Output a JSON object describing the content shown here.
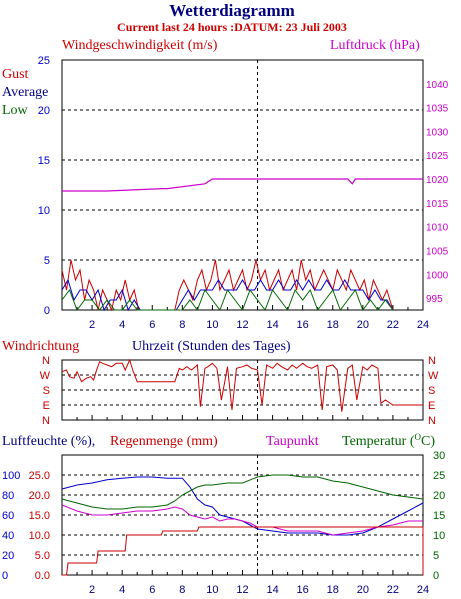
{
  "colors": {
    "title": "#000080",
    "red": "#cc0000",
    "magenta": "#cc00cc",
    "blue": "#0000cc",
    "green": "#006600",
    "cyan": "#008888",
    "grid": "#000000"
  },
  "header": {
    "title": "Wetterdiagramm",
    "subtitle": "Current last 24 hours :DATUM: 23 Juli 2003"
  },
  "chart_data": [
    {
      "type": "line",
      "id": "wind",
      "y_left_label": "Windgeschwindigkeit (m/s)",
      "y_right_label": "Luftdruck (hPa)",
      "legend": [
        "Gust",
        "Average",
        "Low"
      ],
      "x_ticks": [
        "2",
        "4",
        "6",
        "8",
        "10",
        "12",
        "14",
        "16",
        "18",
        "20",
        "22",
        "24"
      ],
      "xlim": [
        0,
        24
      ],
      "ylim_left": [
        0,
        25
      ],
      "y_left_ticks": [
        "0",
        "5",
        "10",
        "15",
        "20",
        "25"
      ],
      "ylim_right": [
        992.5,
        1045
      ],
      "y_right_ticks": [
        "995",
        "1000",
        "1005",
        "1010",
        "1015",
        "1020",
        "1025",
        "1030",
        "1035",
        "1040"
      ],
      "grid": true,
      "series": [
        {
          "name": "Luftdruck",
          "axis": "right",
          "x": [
            0,
            3,
            6.7,
            7,
            9.5,
            10,
            12.5,
            13,
            16,
            19,
            19.3,
            19.5,
            24
          ],
          "y": [
            1017.5,
            1017.5,
            1018,
            1018,
            1019,
            1020,
            1020,
            1020,
            1020,
            1020,
            1019,
            1020,
            1020
          ]
        },
        {
          "name": "Gust",
          "axis": "left",
          "x": [
            0,
            0.3,
            0.6,
            0.9,
            1.2,
            1.5,
            1.8,
            2.1,
            2.4,
            2.7,
            3,
            3.3,
            3.6,
            3.9,
            4.2,
            4.5,
            4.8,
            5.1,
            7.5,
            7.8,
            8.1,
            8.4,
            8.7,
            9,
            9.3,
            9.6,
            9.9,
            10.2,
            10.5,
            10.8,
            11.1,
            11.4,
            11.7,
            12,
            12.3,
            12.6,
            12.9,
            13.2,
            13.5,
            13.8,
            14.1,
            14.4,
            14.7,
            15,
            15.3,
            15.6,
            15.9,
            16.2,
            16.5,
            16.8,
            17.1,
            17.4,
            17.7,
            18,
            18.3,
            18.6,
            18.9,
            19.2,
            19.5,
            19.8,
            20.1,
            20.4,
            20.7,
            21,
            21.3,
            21.6,
            22
          ],
          "y": [
            4,
            2,
            5,
            3,
            4,
            1,
            3,
            2,
            0,
            2,
            1,
            0,
            2,
            1,
            3,
            1,
            2,
            0,
            0,
            2,
            3,
            2,
            1,
            3,
            4,
            2,
            3,
            5,
            2,
            3,
            4,
            2,
            3,
            4,
            2,
            3,
            5,
            3,
            4,
            2,
            3,
            4,
            2,
            3,
            4,
            2,
            5,
            3,
            4,
            2,
            3,
            4,
            3,
            2,
            4,
            3,
            2,
            4,
            3,
            2,
            3,
            1,
            3,
            2,
            1,
            2,
            0
          ]
        },
        {
          "name": "Average",
          "axis": "left",
          "x": [
            0,
            0.4,
            0.8,
            1.2,
            1.6,
            2,
            2.4,
            2.8,
            3.2,
            3.6,
            4,
            4.4,
            4.8,
            5.2,
            7.6,
            8,
            8.4,
            8.8,
            9.2,
            9.6,
            10,
            10.4,
            10.8,
            11.2,
            11.6,
            12,
            12.4,
            12.8,
            13.2,
            13.6,
            14,
            14.4,
            14.8,
            15.2,
            15.6,
            16,
            16.4,
            16.8,
            17.2,
            17.6,
            18,
            18.4,
            18.8,
            19.2,
            19.6,
            20,
            20.4,
            20.8,
            21.2,
            21.6,
            22
          ],
          "y": [
            2,
            3,
            1,
            2,
            2,
            1,
            2,
            0,
            1,
            1,
            2,
            0,
            1,
            0,
            0,
            1,
            2,
            1,
            2,
            2,
            2,
            3,
            2,
            2,
            2,
            3,
            2,
            2,
            3,
            2,
            2,
            3,
            2,
            2,
            3,
            2,
            3,
            2,
            2,
            3,
            2,
            2,
            3,
            2,
            2,
            2,
            1,
            2,
            1,
            1,
            0
          ]
        },
        {
          "name": "Low",
          "axis": "left",
          "x": [
            0,
            0.5,
            1,
            1.5,
            2,
            2.5,
            3,
            3.5,
            4,
            4.5,
            5,
            8,
            8.5,
            9,
            9.5,
            10,
            10.5,
            11,
            11.5,
            12,
            12.5,
            13,
            13.5,
            14,
            14.5,
            15,
            15.5,
            16,
            16.5,
            17,
            17.5,
            18,
            18.5,
            19,
            19.5,
            20,
            20.5,
            21,
            21.5,
            22
          ],
          "y": [
            1,
            2,
            0,
            1,
            1,
            0,
            1,
            0,
            0,
            1,
            0,
            0,
            1,
            0,
            2,
            1,
            0,
            2,
            1,
            0,
            2,
            1,
            0,
            2,
            1,
            0,
            2,
            1,
            2,
            0,
            1,
            2,
            0,
            1,
            2,
            0,
            1,
            0,
            1,
            0
          ]
        }
      ]
    },
    {
      "type": "line",
      "id": "direction",
      "y_left_label": "Windrichtung",
      "xlabel": "Uhrzeit (Stunden des Tages)",
      "y_ticks": [
        "N",
        "W",
        "S",
        "E",
        "N"
      ],
      "xlim": [
        0,
        24
      ],
      "grid": true,
      "series": [
        {
          "name": "Windrichtung",
          "x": [
            0,
            0.3,
            0.5,
            0.8,
            1,
            1.3,
            1.6,
            1.9,
            2.1,
            2.3,
            2.5,
            2.7,
            3,
            3.3,
            3.6,
            4,
            4.2,
            4.5,
            4.7,
            5,
            6,
            6.5,
            7,
            7.5,
            7.8,
            8,
            8.3,
            8.6,
            9,
            9.2,
            9.5,
            9.7,
            10,
            10.3,
            10.6,
            11,
            11.3,
            11.6,
            12,
            12.3,
            12.6,
            13,
            13.3,
            13.6,
            14,
            14.3,
            14.6,
            15,
            15.3,
            15.6,
            16,
            16.3,
            16.6,
            17,
            17.3,
            17.6,
            18,
            18.3,
            18.6,
            19,
            19.3,
            19.6,
            20,
            20.3,
            20.6,
            21,
            21.2,
            21.5,
            22,
            24
          ],
          "y": [
            290,
            300,
            260,
            250,
            290,
            230,
            250,
            260,
            240,
            300,
            350,
            340,
            330,
            320,
            340,
            340,
            300,
            360,
            300,
            230,
            230,
            230,
            230,
            230,
            310,
            300,
            320,
            300,
            330,
            80,
            310,
            320,
            340,
            310,
            120,
            320,
            60,
            310,
            320,
            330,
            310,
            300,
            90,
            330,
            310,
            340,
            320,
            300,
            330,
            310,
            340,
            320,
            310,
            330,
            60,
            320,
            330,
            300,
            50,
            310,
            330,
            120,
            320,
            300,
            330,
            310,
            100,
            120,
            90,
            90
          ]
        }
      ]
    },
    {
      "type": "line",
      "id": "humidity",
      "y_left_label_1": "Luftfeuchte (%),",
      "y_left_label_2": "Regenmenge (mm)",
      "y_mid_label": "Taupunkt",
      "y_right_label": "Temperatur (",
      "y_right_label_deg": "O",
      "y_right_label_end": "C)",
      "x_ticks": [
        "2",
        "4",
        "6",
        "8",
        "10",
        "12",
        "14",
        "16",
        "18",
        "20",
        "22",
        "24"
      ],
      "xlim": [
        0,
        24
      ],
      "ylim": [
        0,
        30
      ],
      "y_left_ticks_1": [
        "0",
        "20",
        "40",
        "60",
        "80",
        "100"
      ],
      "y_left_ticks_2": [
        "0.0",
        "5.0",
        "10.0",
        "15.0",
        "20.0",
        "25.0"
      ],
      "y_right_ticks": [
        "0",
        "5",
        "10",
        "15",
        "20",
        "25",
        "30"
      ],
      "grid": true,
      "series": [
        {
          "name": "Luftfeuchte",
          "x": [
            0,
            1,
            2,
            3,
            4,
            5,
            6,
            7,
            8,
            8.5,
            9,
            9.5,
            10,
            10.5,
            11,
            11.5,
            12,
            12.5,
            13,
            14,
            15,
            16,
            17,
            18,
            19,
            20,
            21,
            22,
            23,
            24
          ],
          "y": [
            21.5,
            22.5,
            23,
            23.8,
            24.2,
            24.5,
            24.5,
            24.2,
            24.2,
            22,
            19,
            17.5,
            17,
            15,
            14.5,
            14,
            13.5,
            12.5,
            11.5,
            11,
            10.5,
            10.5,
            10.5,
            10,
            10,
            10.5,
            12,
            14,
            16,
            18
          ]
        },
        {
          "name": "Temperatur",
          "x": [
            0,
            1,
            2,
            3,
            4,
            5,
            6,
            7,
            7.5,
            8,
            8.5,
            9,
            9.5,
            10,
            11,
            12,
            13,
            14,
            15,
            16,
            17,
            18,
            19,
            20,
            21,
            22,
            23,
            24
          ],
          "y": [
            19,
            18,
            17,
            16.5,
            16.5,
            17,
            17,
            17.5,
            18.5,
            20,
            21,
            22,
            22.5,
            22.5,
            23,
            23,
            24.5,
            25,
            25,
            24.5,
            24.5,
            23.5,
            23,
            22,
            21,
            20,
            19.5,
            19
          ]
        },
        {
          "name": "Taupunkt",
          "x": [
            0,
            1,
            2,
            3,
            4,
            5,
            6,
            7,
            7.5,
            8,
            8.5,
            9,
            9.5,
            10,
            10.5,
            11,
            11.5,
            12,
            12.5,
            13,
            14,
            15,
            16,
            17,
            18,
            19,
            20,
            21,
            22,
            23,
            24
          ],
          "y": [
            17.5,
            16,
            15,
            15,
            15.5,
            16,
            16,
            16.5,
            17,
            16.5,
            15,
            14.5,
            14,
            14.5,
            13.5,
            14,
            14,
            13.5,
            13,
            12,
            12,
            11,
            11,
            11,
            10,
            10.5,
            11,
            12,
            12.5,
            13.5,
            13.5
          ]
        },
        {
          "name": "Regenmenge",
          "x": [
            0,
            0.3,
            0.4,
            2.3,
            2.4,
            4.2,
            4.3,
            6.6,
            6.7,
            9,
            9.1,
            12.9,
            13,
            24,
            24
          ],
          "y": [
            0,
            0,
            3,
            3,
            6,
            6,
            10,
            10,
            11,
            11,
            12,
            12,
            12,
            12,
            0
          ]
        }
      ]
    }
  ]
}
